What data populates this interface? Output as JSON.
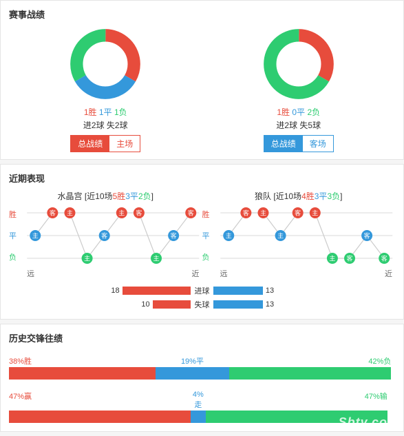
{
  "colors": {
    "red": "#e74c3c",
    "blue": "#3498db",
    "green": "#2ecc71",
    "grid": "#d9d9d9",
    "node_stroke": "#cccccc"
  },
  "panel1": {
    "title": "赛事战绩",
    "left": {
      "donut": {
        "win": 1,
        "draw": 1,
        "loss": 1,
        "win_color": "#e74c3c",
        "draw_color": "#3498db",
        "loss_color": "#2ecc71"
      },
      "legend": {
        "win": "1胜",
        "draw": "1平",
        "loss": "1负"
      },
      "goals": "进2球 失2球",
      "tabs": {
        "all": "总战绩",
        "home": "主场",
        "active": "all",
        "theme": "red"
      }
    },
    "right": {
      "donut": {
        "win": 1,
        "draw": 0,
        "loss": 2,
        "win_color": "#e74c3c",
        "draw_color": "#3498db",
        "loss_color": "#2ecc71"
      },
      "legend": {
        "win": "1胜",
        "draw": "0平",
        "loss": "2负"
      },
      "goals": "进2球 失5球",
      "tabs": {
        "all": "总战绩",
        "away": "客场",
        "active": "all",
        "theme": "blue"
      }
    }
  },
  "panel2": {
    "title": "近期表现",
    "ylabels": {
      "win": "胜",
      "draw": "平",
      "loss": "负"
    },
    "xlabels": {
      "far": "远",
      "near": "近"
    },
    "chartA": {
      "title_team": "水晶宫",
      "title_prefix": "[近10场",
      "title_w": "5胜",
      "title_d": "3平",
      "title_l": "2负",
      "title_suffix": "]",
      "points": [
        {
          "r": 1,
          "t": "主",
          "c": "blue"
        },
        {
          "r": 0,
          "t": "客",
          "c": "red"
        },
        {
          "r": 0,
          "t": "主",
          "c": "red"
        },
        {
          "r": 2,
          "t": "主",
          "c": "green"
        },
        {
          "r": 1,
          "t": "客",
          "c": "blue"
        },
        {
          "r": 0,
          "t": "主",
          "c": "red"
        },
        {
          "r": 0,
          "t": "客",
          "c": "red"
        },
        {
          "r": 2,
          "t": "主",
          "c": "green"
        },
        {
          "r": 1,
          "t": "客",
          "c": "blue"
        },
        {
          "r": 0,
          "t": "客",
          "c": "red"
        }
      ]
    },
    "chartB": {
      "title_team": "狼队",
      "title_prefix": "[近10场",
      "title_w": "4胜",
      "title_d": "3平",
      "title_l": "3负",
      "title_suffix": "]",
      "points": [
        {
          "r": 1,
          "t": "主",
          "c": "blue"
        },
        {
          "r": 0,
          "t": "客",
          "c": "red"
        },
        {
          "r": 0,
          "t": "主",
          "c": "red"
        },
        {
          "r": 1,
          "t": "主",
          "c": "blue"
        },
        {
          "r": 0,
          "t": "客",
          "c": "red"
        },
        {
          "r": 0,
          "t": "主",
          "c": "red"
        },
        {
          "r": 2,
          "t": "主",
          "c": "green"
        },
        {
          "r": 2,
          "t": "客",
          "c": "green"
        },
        {
          "r": 1,
          "t": "客",
          "c": "blue"
        },
        {
          "r": 2,
          "t": "客",
          "c": "green"
        }
      ]
    },
    "goal_bars": {
      "labels": {
        "for": "进球",
        "against": "失球"
      },
      "left": {
        "for": 18,
        "against": 10,
        "color": "#e74c3c",
        "max": 20
      },
      "right": {
        "for": 13,
        "against": 13,
        "color": "#3498db",
        "max": 20
      }
    }
  },
  "panel3": {
    "title": "历史交锋往绩",
    "bar1": {
      "segments": [
        {
          "label": "38%胜",
          "pct": 38,
          "color": "#e74c3c",
          "labelColor": "#e74c3c",
          "labelPos": "left"
        },
        {
          "label": "19%平",
          "pct": 19,
          "color": "#3498db",
          "labelColor": "#3498db",
          "labelPos": "center"
        },
        {
          "label": "42%负",
          "pct": 42,
          "color": "#2ecc71",
          "labelColor": "#2ecc71",
          "labelPos": "right"
        }
      ]
    },
    "bar2": {
      "segments": [
        {
          "label": "47%赢",
          "pct": 47,
          "color": "#e74c3c",
          "labelColor": "#e74c3c",
          "labelPos": "left"
        },
        {
          "label": "4%走",
          "pct": 4,
          "color": "#3498db",
          "labelColor": "#3498db",
          "labelPos": "center"
        },
        {
          "label": "47%输",
          "pct": 47,
          "color": "#2ecc71",
          "labelColor": "#2ecc71",
          "labelPos": "right"
        }
      ]
    },
    "watermark": "Sbty.com"
  }
}
